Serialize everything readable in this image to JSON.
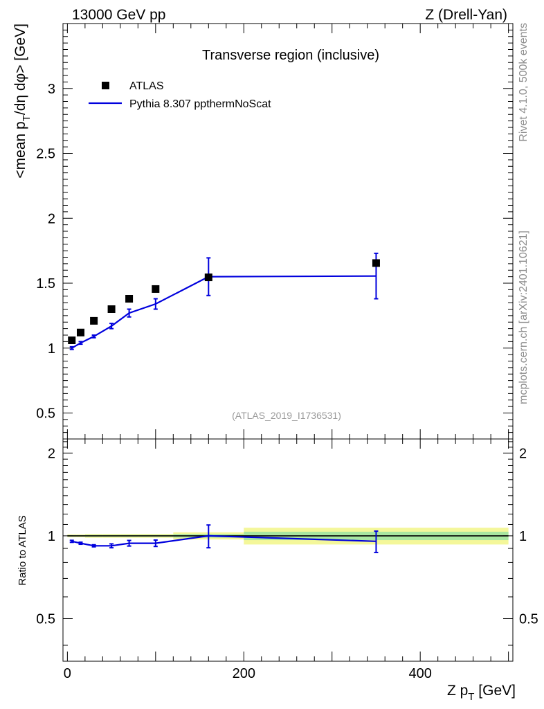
{
  "header": {
    "left": "13000 GeV pp",
    "right": "Z (Drell-Yan)"
  },
  "side_labels": {
    "rivet": "Rivet 4.1.0,  500k events",
    "mcplots": "mcplots.cern.ch [arXiv:2401.10621]"
  },
  "chart_data": [
    {
      "panel": "main",
      "type": "scatter",
      "title": "Transverse region (inclusive)",
      "analysis_tag": "(ATLAS_2019_I1736531)",
      "xlabel": "Z p_T [GeV]",
      "ylabel": "<mean p_T/dη dφ> [GeV]",
      "xlim": [
        -5,
        505
      ],
      "ylim": [
        0.3,
        3.5
      ],
      "yticks": [
        "0.5",
        "1",
        "1.5",
        "2",
        "2.5",
        "3"
      ],
      "legend": {
        "position": "top-left",
        "entries": [
          "ATLAS",
          "Pythia 8.307 ppthermNoScat"
        ]
      },
      "series": [
        {
          "name": "ATLAS",
          "style": "markers",
          "color": "#000000",
          "x": [
            5,
            15,
            30,
            50,
            70,
            100,
            160,
            350
          ],
          "y": [
            1.06,
            1.12,
            1.21,
            1.3,
            1.38,
            1.455,
            1.545,
            1.655
          ]
        },
        {
          "name": "Pythia 8.307 ppthermNoScat",
          "style": "line",
          "color": "#0000dd",
          "x": [
            5,
            15,
            30,
            50,
            70,
            100,
            160,
            350
          ],
          "x_low": [
            0,
            10,
            20,
            40,
            60,
            80,
            120,
            200
          ],
          "x_high": [
            10,
            20,
            40,
            60,
            80,
            120,
            200,
            500
          ],
          "y": [
            1.0,
            1.04,
            1.09,
            1.17,
            1.27,
            1.34,
            1.55,
            1.555
          ],
          "err": [
            0.01,
            0.01,
            0.01,
            0.02,
            0.03,
            0.04,
            0.145,
            0.175
          ]
        }
      ]
    },
    {
      "panel": "ratio",
      "type": "line",
      "ylabel": "Ratio to ATLAS",
      "xlim": [
        -5,
        505
      ],
      "ylim": [
        0.35,
        2.25
      ],
      "yticks": [
        "0.5",
        "1",
        "2"
      ],
      "xticks": [
        "0",
        "200",
        "400"
      ],
      "reference_band": {
        "x_low": [
          0,
          10,
          20,
          40,
          60,
          80,
          120,
          200
        ],
        "x_high": [
          10,
          20,
          40,
          60,
          80,
          120,
          200,
          500
        ],
        "inner": [
          0.006,
          0.006,
          0.008,
          0.008,
          0.008,
          0.008,
          0.015,
          0.035
        ],
        "outer": [
          0.012,
          0.012,
          0.016,
          0.016,
          0.016,
          0.016,
          0.03,
          0.07
        ]
      },
      "series": [
        {
          "name": "Pythia 8.307 ppthermNoScat / ATLAS",
          "color": "#0000dd",
          "x": [
            5,
            15,
            30,
            50,
            70,
            100,
            160,
            350
          ],
          "y": [
            0.955,
            0.94,
            0.92,
            0.92,
            0.94,
            0.94,
            1.0,
            0.955
          ],
          "err": [
            0.008,
            0.008,
            0.008,
            0.015,
            0.022,
            0.025,
            0.095,
            0.085
          ]
        }
      ]
    }
  ]
}
